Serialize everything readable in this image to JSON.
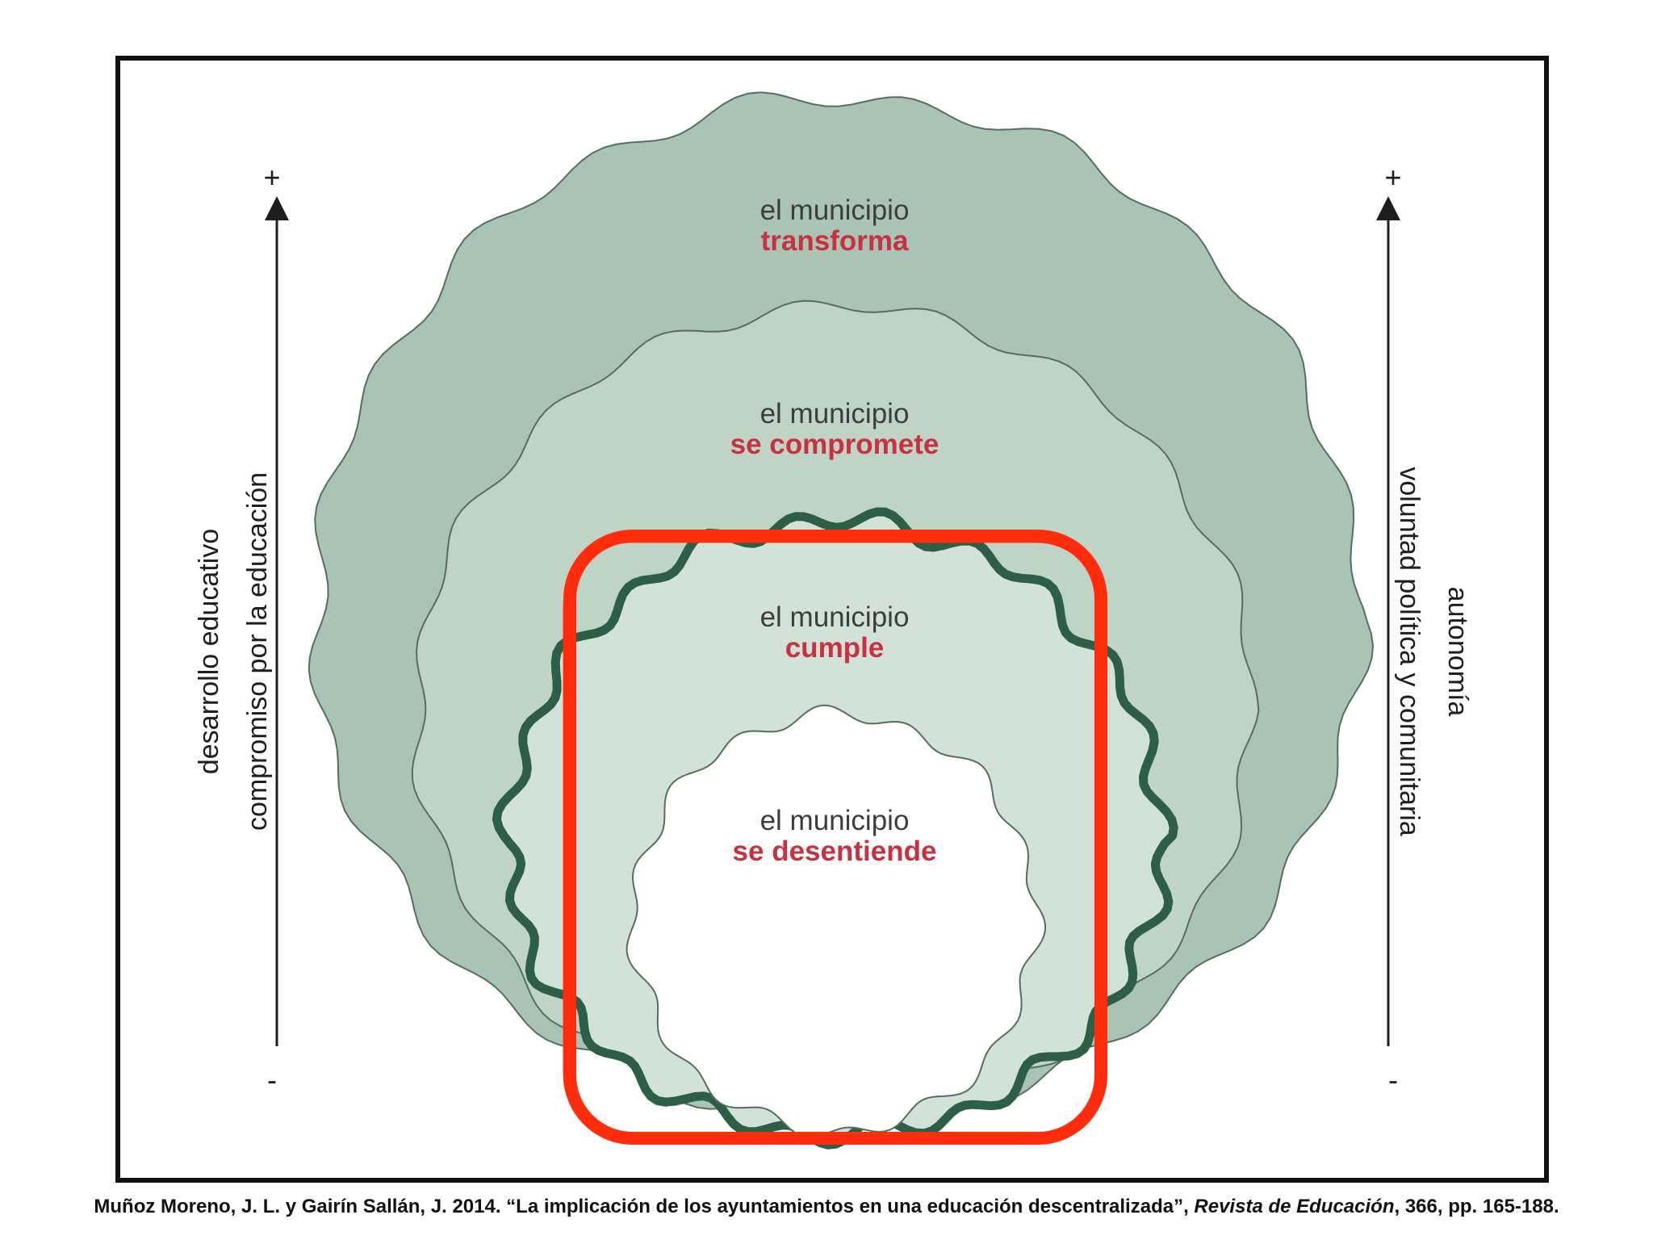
{
  "diagram": {
    "levels": [
      {
        "line1": "el municipio",
        "line2": "transforma"
      },
      {
        "line1": "el municipio",
        "line2": "se compromete"
      },
      {
        "line1": "el municipio",
        "line2": "cumple"
      },
      {
        "line1": "el municipio",
        "line2": "se desentiende"
      }
    ],
    "left_axis": {
      "label1": "desarrollo educativo",
      "label2": "compromiso por la educación",
      "plus": "+",
      "minus": "-"
    },
    "right_axis": {
      "label1": "autonomía",
      "label2": "voluntad política y comunitaria",
      "plus": "+",
      "minus": "-"
    },
    "colors": {
      "outer_fill": "#a9c3b4",
      "middle_fill": "#bfd4c7",
      "inner_fill": "#d3e2d9",
      "core_fill": "#ffffff",
      "dark_outline": "#2c5f45",
      "highlight": "#ff2d0d",
      "verb_text": "#c8313f"
    }
  },
  "caption": {
    "authors": "Muñoz Moreno, J. L. y Gairín Sallán, J. 2014. “La implicación de los ayuntamientos en una educación descentralizada”, ",
    "journal": "Revista de Educación",
    "details": ", 366, pp. 165-188."
  }
}
